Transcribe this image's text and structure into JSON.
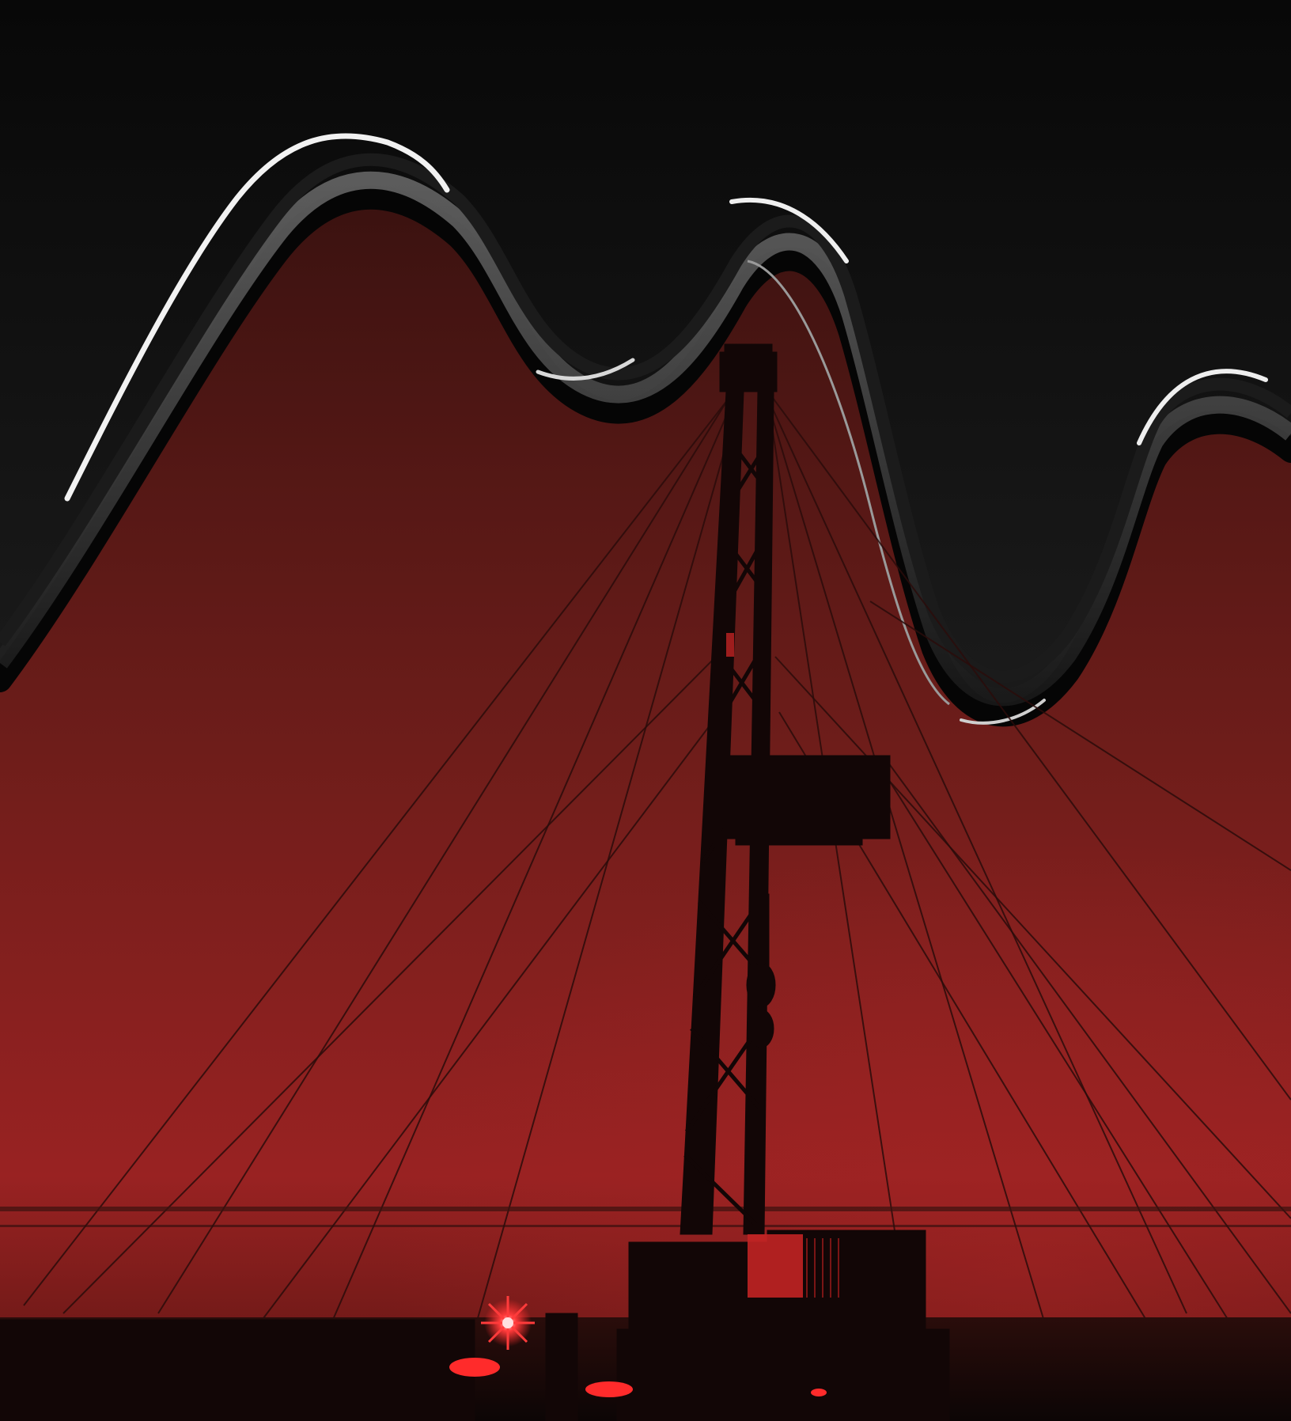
{
  "artwork": {
    "subject": "drilling-rig-silhouette",
    "palette": {
      "sky_top": "#080808",
      "sky_mid": "#2b2b2b",
      "red_top": "#3a1210",
      "red_bottom": "#9a2222",
      "ground": "#140807",
      "wave_highlight": "#f2f2f2",
      "silhouette": "#120606",
      "glow": "#ff3b3b"
    },
    "icons": [
      "wave-ribbon-icon",
      "derrick-icon",
      "guy-wires-icon",
      "starburst-light-icon",
      "ground-lamp-icon"
    ]
  }
}
